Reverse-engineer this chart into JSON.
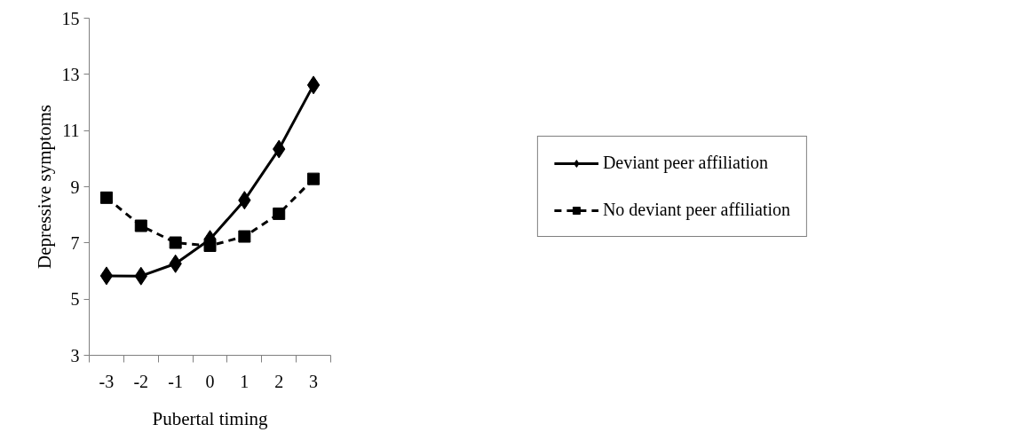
{
  "chart_data": {
    "type": "line",
    "xlabel": "Pubertal timing",
    "ylabel": "Depressive symptoms",
    "categories": [
      "-3",
      "-2",
      "-1",
      "0",
      "1",
      "2",
      "3"
    ],
    "series": [
      {
        "name": "Deviant peer affiliation",
        "color": "#000000",
        "marker": "diamond",
        "line_style": "solid",
        "values": [
          5.83,
          5.82,
          6.26,
          7.13,
          8.52,
          10.34,
          12.62
        ]
      },
      {
        "name": "No deviant peer affiliation",
        "color": "#000000",
        "marker": "square",
        "line_style": "dashed",
        "values": [
          8.61,
          7.61,
          7.01,
          6.9,
          7.23,
          8.04,
          9.28
        ]
      }
    ],
    "ylim": [
      3,
      15
    ],
    "yticks": [
      3,
      5,
      7,
      9,
      11,
      13,
      15
    ],
    "grid": false,
    "legend": "right"
  }
}
